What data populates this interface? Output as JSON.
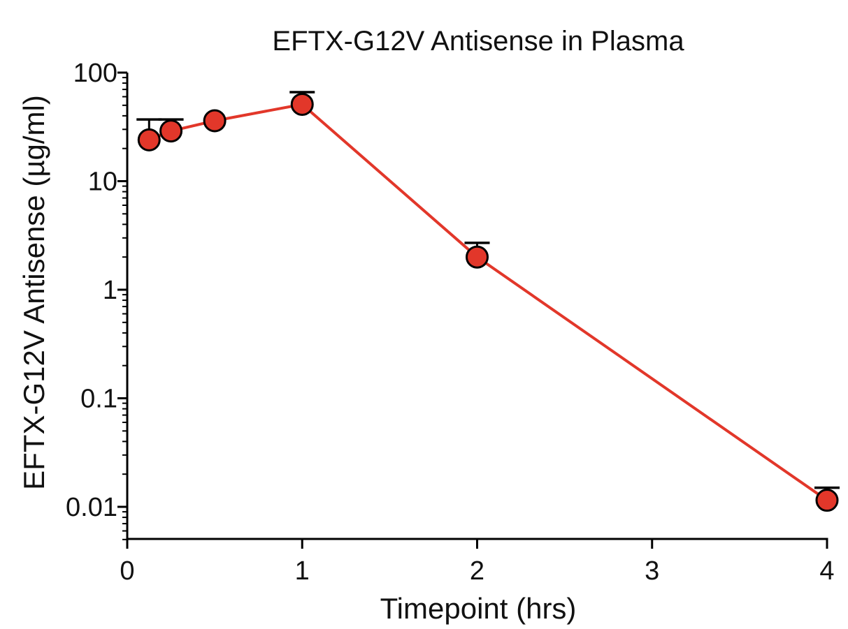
{
  "chart_data": {
    "type": "scatter",
    "title": "EFTX-G12V Antisense in Plasma",
    "xlabel": "Timepoint (hrs)",
    "ylabel": "EFTX-G12V Antisense (µg/ml)",
    "x_scale": "linear",
    "y_scale": "log",
    "xlim": [
      0,
      4
    ],
    "ylim": [
      0.005,
      100
    ],
    "x_ticks": [
      "0",
      "1",
      "2",
      "3",
      "4"
    ],
    "y_ticks": [
      "0.01",
      "0.1",
      "1",
      "10",
      "100"
    ],
    "grid": false,
    "series": [
      {
        "x": [
          0.125,
          0.25,
          0.5,
          1,
          2,
          4
        ],
        "y": [
          24,
          29,
          36,
          51,
          2.0,
          0.0115
        ],
        "error_upper": [
          37,
          37,
          null,
          66,
          2.7,
          0.015
        ],
        "color": "#e2372a"
      }
    ]
  }
}
